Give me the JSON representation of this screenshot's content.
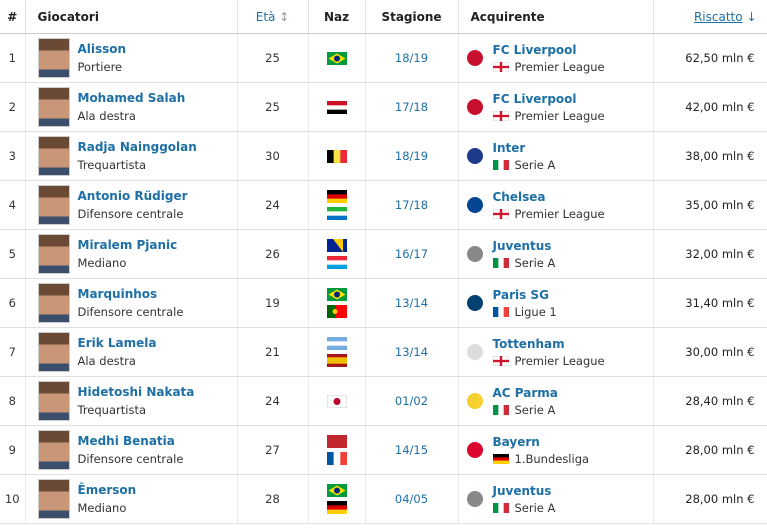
{
  "table": {
    "header": {
      "rank": "#",
      "player": "Giocatori",
      "age": "Età",
      "nationality": "Naz",
      "season": "Stagione",
      "buyer": "Acquirente",
      "fee": "Riscatto"
    },
    "rows": [
      {
        "rank": 1,
        "name": "Alisson",
        "position": "Portiere",
        "age": 25,
        "season": "18/19",
        "club": "FC Liverpool",
        "league": "Premier League",
        "fee": "62,50 mln €"
      },
      {
        "rank": 2,
        "name": "Mohamed Salah",
        "position": "Ala destra",
        "age": 25,
        "season": "17/18",
        "club": "FC Liverpool",
        "league": "Premier League",
        "fee": "42,00 mln €"
      },
      {
        "rank": 3,
        "name": "Radja Nainggolan",
        "position": "Trequartista",
        "age": 30,
        "season": "18/19",
        "club": "Inter",
        "league": "Serie A",
        "fee": "38,00 mln €"
      },
      {
        "rank": 4,
        "name": "Antonio Rüdiger",
        "position": "Difensore centrale",
        "age": 24,
        "season": "17/18",
        "club": "Chelsea",
        "league": "Premier League",
        "fee": "35,00 mln €"
      },
      {
        "rank": 5,
        "name": "Miralem Pjanic",
        "position": "Mediano",
        "age": 26,
        "season": "16/17",
        "club": "Juventus",
        "league": "Serie A",
        "fee": "32,00 mln €"
      },
      {
        "rank": 6,
        "name": "Marquinhos",
        "position": "Difensore centrale",
        "age": 19,
        "season": "13/14",
        "club": "Paris SG",
        "league": "Ligue 1",
        "fee": "31,40 mln €"
      },
      {
        "rank": 7,
        "name": "Erik Lamela",
        "position": "Ala destra",
        "age": 21,
        "season": "13/14",
        "club": "Tottenham",
        "league": "Premier League",
        "fee": "30,00 mln €"
      },
      {
        "rank": 8,
        "name": "Hidetoshi Nakata",
        "position": "Trequartista",
        "age": 24,
        "season": "01/02",
        "club": "AC Parma",
        "league": "Serie A",
        "fee": "28,40 mln €"
      },
      {
        "rank": 9,
        "name": "Medhi Benatia",
        "position": "Difensore centrale",
        "age": 27,
        "season": "14/15",
        "club": "Bayern",
        "league": "1.Bundesliga",
        "fee": "28,00 mln €"
      },
      {
        "rank": 10,
        "name": "Êmerson",
        "position": "Mediano",
        "age": 28,
        "season": "04/05",
        "club": "Juventus",
        "league": "Serie A",
        "fee": "28,00 mln €"
      }
    ]
  }
}
